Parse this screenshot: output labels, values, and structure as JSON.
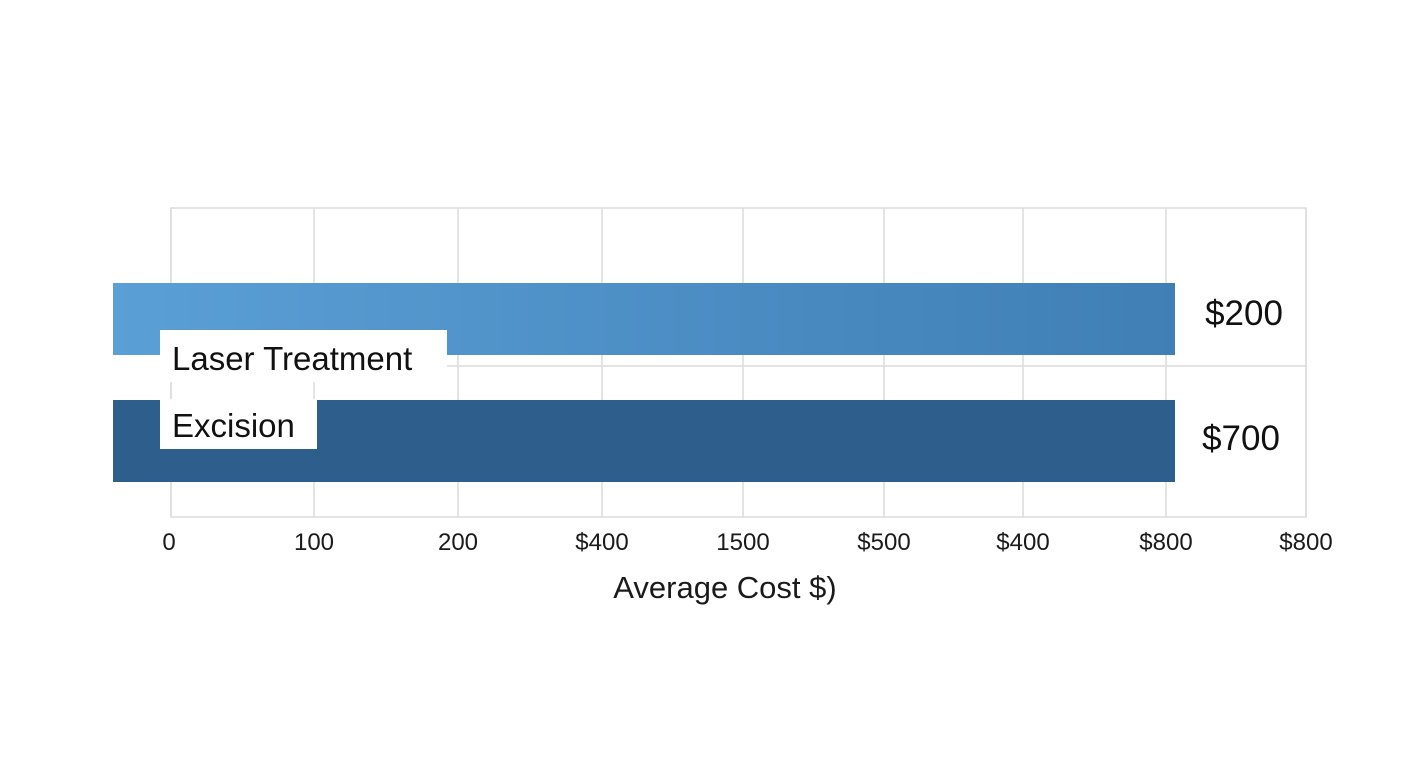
{
  "chart_data": {
    "type": "bar",
    "orientation": "horizontal",
    "title": "",
    "xlabel": "Average Cost $)",
    "ylabel": "",
    "categories": [
      "Laser Treatment",
      "Excision"
    ],
    "value_labels": [
      "$200",
      "$700"
    ],
    "x_tick_labels": [
      "0",
      "100",
      "200",
      "$400",
      "1500",
      "$500",
      "$400",
      "$800",
      "$800"
    ],
    "grid": true,
    "legend": "none",
    "colors": {
      "bar_1_start": "#5a9fd6",
      "bar_1_end": "#3f7fb5",
      "bar_2": "#2e5f8c",
      "grid": "#dcdcdc",
      "label_bg": "#ffffff"
    }
  }
}
